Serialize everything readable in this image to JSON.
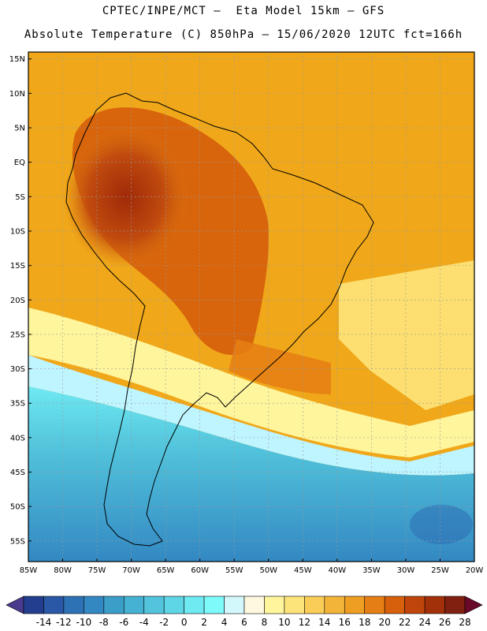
{
  "header": {
    "line1": "CPTEC/INPE/MCT –  Eta Model 15km – GFS",
    "line2": "Absolute Temperature (C) 850hPa – 15/06/2020 12UTC fct=166h"
  },
  "map": {
    "lat_ticks": [
      "15N",
      "10N",
      "5N",
      "EQ",
      "5S",
      "10S",
      "15S",
      "20S",
      "25S",
      "30S",
      "35S",
      "40S",
      "45S",
      "50S",
      "55S"
    ],
    "lon_ticks": [
      "85W",
      "80W",
      "75W",
      "70W",
      "65W",
      "60W",
      "55W",
      "50W",
      "45W",
      "40W",
      "35W",
      "30W",
      "25W",
      "20W"
    ],
    "extent": {
      "lon": [
        -85,
        -20
      ],
      "lat": [
        -58,
        16
      ]
    },
    "field_colors": {
      "warmest": "#9c2a08",
      "hot": "#c8460c",
      "warm": "#e0700c",
      "mild": "#f0a81a",
      "pale": "#fde47a",
      "cool": "#bff5ff",
      "cold": "#5fe0f5",
      "colder": "#3fb6d8",
      "coldest": "#2a7fbf"
    }
  },
  "colorbar": {
    "labels": [
      "-14",
      "-12",
      "-10",
      "-8",
      "-6",
      "-4",
      "-2",
      "0",
      "2",
      "4",
      "6",
      "8",
      "10",
      "12",
      "14",
      "16",
      "18",
      "20",
      "22",
      "24",
      "26",
      "28"
    ],
    "colors": [
      "#233e8e",
      "#2a58a6",
      "#2e72b6",
      "#3388c2",
      "#3a9ec9",
      "#45b2d4",
      "#52c4dc",
      "#5fd6e6",
      "#6fe9f2",
      "#7ffafa",
      "#d2f8fc",
      "#fff8e0",
      "#fff59c",
      "#fde47a",
      "#f9cd58",
      "#f3b43a",
      "#ee9e22",
      "#e57e14",
      "#d6600c",
      "#c0450a",
      "#a23008",
      "#802010"
    ],
    "left_arrow_color": "#4a3a8e",
    "right_arrow_color": "#6a0a2a"
  }
}
